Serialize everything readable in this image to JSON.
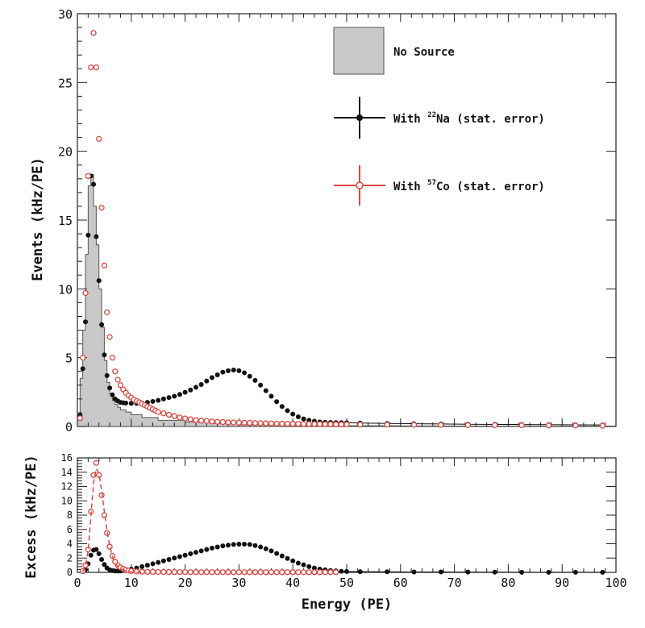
{
  "colors": {
    "na22": "#111111",
    "co57": "#e0463f",
    "no_source_fill": "#c8c8c8",
    "no_source_line": "#555555",
    "axis": "#222222"
  },
  "legend": {
    "no_source": "No Source",
    "na22_prefix": "With ",
    "na22_sup": "22",
    "na22_suffix": "Na (stat. error)",
    "co57_prefix": "With ",
    "co57_sup": "57",
    "co57_suffix": "Co (stat. error)"
  },
  "chart_data": [
    {
      "type": "scatter",
      "ylabel": "Events (kHz/PE)",
      "xlim": [
        0,
        100
      ],
      "ylim": [
        0,
        30
      ],
      "x_ticks": [],
      "y_ticks": [
        0,
        5,
        10,
        15,
        20,
        25,
        30
      ],
      "legend_position": "top-right",
      "series": [
        {
          "name": "No Source",
          "style": "histogram",
          "x": [
            0.5,
            1,
            1.5,
            2,
            2.5,
            3,
            3.5,
            4,
            4.5,
            5,
            5.5,
            6,
            6.5,
            7,
            7.5,
            8,
            9,
            10,
            12,
            15,
            20,
            25,
            30,
            40,
            50,
            60,
            70,
            80,
            90,
            100
          ],
          "y": [
            0.6,
            3.5,
            7.0,
            12.5,
            17.5,
            18.3,
            16.0,
            13.2,
            10.0,
            7.2,
            4.8,
            3.2,
            2.4,
            1.9,
            1.6,
            1.4,
            1.2,
            1.05,
            0.85,
            0.65,
            0.45,
            0.32,
            0.22,
            0.12,
            0.07,
            0.05,
            0.04,
            0.03,
            0.02,
            0.02
          ]
        },
        {
          "name": "With 22Na (stat. error)",
          "x": [
            0.5,
            1,
            1.5,
            2,
            2.5,
            3,
            3.5,
            4,
            4.5,
            5,
            5.5,
            6,
            6.5,
            7,
            7.5,
            8,
            8.5,
            9,
            10,
            11,
            12,
            13,
            14,
            15,
            16,
            17,
            18,
            19,
            20,
            21,
            22,
            23,
            24,
            25,
            26,
            27,
            28,
            29,
            30,
            31,
            32,
            33,
            34,
            35,
            36,
            37,
            38,
            39,
            40,
            41,
            42,
            43,
            44,
            45,
            46,
            47,
            48,
            49,
            50,
            52.5,
            57.5,
            62.5,
            67.5,
            72.5,
            77.5,
            82.5,
            87.5,
            92.5,
            97.5
          ],
          "y": [
            0.8,
            4.2,
            7.6,
            13.9,
            18.2,
            17.6,
            13.8,
            10.6,
            7.4,
            5.2,
            3.7,
            2.8,
            2.3,
            2.0,
            1.85,
            1.75,
            1.72,
            1.7,
            1.68,
            1.68,
            1.7,
            1.75,
            1.82,
            1.9,
            2.0,
            2.1,
            2.2,
            2.33,
            2.48,
            2.65,
            2.85,
            3.05,
            3.3,
            3.55,
            3.75,
            3.95,
            4.05,
            4.1,
            4.05,
            3.9,
            3.65,
            3.35,
            3.0,
            2.6,
            2.2,
            1.8,
            1.45,
            1.15,
            0.9,
            0.7,
            0.55,
            0.45,
            0.38,
            0.33,
            0.3,
            0.29,
            0.28,
            0.28,
            0.27,
            0.25,
            0.22,
            0.2,
            0.18,
            0.16,
            0.15,
            0.14,
            0.13,
            0.12,
            0.11
          ]
        },
        {
          "name": "With 57Co (stat. error)",
          "x": [
            0.5,
            1,
            1.5,
            2,
            2.5,
            3,
            3.5,
            4,
            4.5,
            5,
            5.5,
            6,
            6.5,
            7,
            7.5,
            8,
            8.5,
            9,
            9.5,
            10,
            10.5,
            11,
            11.5,
            12,
            12.5,
            13,
            13.5,
            14,
            14.5,
            15,
            16,
            17,
            18,
            19,
            20,
            21,
            22,
            23,
            24,
            25,
            26,
            27,
            28,
            29,
            30,
            31,
            32,
            33,
            34,
            35,
            36,
            37,
            38,
            39,
            40,
            41,
            42,
            43,
            44,
            45,
            46,
            47,
            48,
            49,
            50,
            52.5,
            57.5,
            62.5,
            67.5,
            72.5,
            77.5,
            82.5,
            87.5,
            92.5,
            97.5
          ],
          "y": [
            0.6,
            5.0,
            9.7,
            18.2,
            26.1,
            28.6,
            26.1,
            20.9,
            15.9,
            11.7,
            8.3,
            6.5,
            5.0,
            4.0,
            3.4,
            3.0,
            2.7,
            2.45,
            2.25,
            2.1,
            1.95,
            1.85,
            1.75,
            1.65,
            1.55,
            1.45,
            1.35,
            1.25,
            1.15,
            1.05,
            0.95,
            0.85,
            0.75,
            0.65,
            0.58,
            0.52,
            0.46,
            0.42,
            0.39,
            0.36,
            0.34,
            0.32,
            0.3,
            0.29,
            0.28,
            0.27,
            0.26,
            0.25,
            0.24,
            0.23,
            0.22,
            0.21,
            0.2,
            0.2,
            0.19,
            0.19,
            0.18,
            0.18,
            0.17,
            0.17,
            0.16,
            0.16,
            0.15,
            0.15,
            0.15,
            0.14,
            0.13,
            0.12,
            0.11,
            0.1,
            0.09,
            0.08,
            0.07,
            0.06,
            0.05
          ]
        }
      ]
    },
    {
      "type": "scatter",
      "xlabel": "Energy (PE)",
      "ylabel": "Excess (kHz/PE)",
      "xlim": [
        0,
        100
      ],
      "ylim": [
        0,
        16
      ],
      "x_ticks": [
        0,
        10,
        20,
        30,
        40,
        50,
        60,
        70,
        80,
        90,
        100
      ],
      "y_ticks": [
        0,
        2,
        4,
        6,
        8,
        10,
        12,
        14,
        16
      ],
      "series": [
        {
          "name": "With 22Na (stat. error)",
          "x": [
            1,
            1.5,
            2,
            2.5,
            3,
            3.5,
            4,
            4.5,
            5,
            5.5,
            6,
            6.5,
            7,
            7.5,
            8,
            9,
            10,
            11,
            12,
            13,
            14,
            15,
            16,
            17,
            18,
            19,
            20,
            21,
            22,
            23,
            24,
            25,
            26,
            27,
            28,
            29,
            30,
            31,
            32,
            33,
            34,
            35,
            36,
            37,
            38,
            39,
            40,
            41,
            42,
            43,
            44,
            45,
            46,
            47,
            48,
            49,
            50,
            52.5,
            57.5,
            62.5,
            67.5,
            72.5,
            77.5,
            82.5,
            87.5,
            92.5,
            97.5
          ],
          "y": [
            0.1,
            0.4,
            1.2,
            2.4,
            3.1,
            3.2,
            2.6,
            1.8,
            1.1,
            0.6,
            0.35,
            0.25,
            0.2,
            0.18,
            0.2,
            0.3,
            0.45,
            0.6,
            0.8,
            1.0,
            1.2,
            1.4,
            1.6,
            1.8,
            2.0,
            2.2,
            2.4,
            2.6,
            2.8,
            3.0,
            3.2,
            3.4,
            3.55,
            3.7,
            3.8,
            3.9,
            3.95,
            3.95,
            3.9,
            3.75,
            3.55,
            3.3,
            3.0,
            2.65,
            2.3,
            1.95,
            1.6,
            1.3,
            1.05,
            0.8,
            0.6,
            0.45,
            0.35,
            0.25,
            0.2,
            0.15,
            0.12,
            0.1,
            0.08,
            0.06,
            0.05,
            0.04,
            0.03,
            0.02,
            0.02,
            0.01,
            0.01
          ]
        },
        {
          "name": "With 57Co (stat. error)",
          "x": [
            1,
            1.5,
            2,
            2.5,
            3,
            3.5,
            4,
            4.5,
            5,
            5.5,
            6,
            6.5,
            7,
            7.5,
            8,
            8.5,
            9,
            9.5,
            10,
            11,
            12,
            13,
            14,
            15,
            16,
            17,
            18,
            19,
            20,
            21,
            22,
            23,
            24,
            25,
            26,
            27,
            28,
            29,
            30,
            31,
            32,
            33,
            34,
            35,
            36,
            37,
            38,
            39,
            40,
            41,
            42,
            43,
            44,
            45,
            46,
            47,
            48
          ],
          "y": [
            0.2,
            1.0,
            3.2,
            8.5,
            13.6,
            15.3,
            13.6,
            10.8,
            8.0,
            5.5,
            3.6,
            2.3,
            1.5,
            1.0,
            0.7,
            0.5,
            0.35,
            0.25,
            0.18,
            0.12,
            0.1,
            0.08,
            0.07,
            0.06,
            0.05,
            0.05,
            0.04,
            0.04,
            0.04,
            0.03,
            0.03,
            0.03,
            0.03,
            0.03,
            0.03,
            0.03,
            0.02,
            0.02,
            0.02,
            0.02,
            0.02,
            0.02,
            0.02,
            0.02,
            0.02,
            0.02,
            0.02,
            0.02,
            0.02,
            0.02,
            0.02,
            0.02,
            0.02,
            0.02,
            0.02,
            0.02,
            0.02
          ]
        },
        {
          "name": "Co57 fit",
          "style": "dashed-line",
          "x": [
            1,
            1.5,
            2,
            2.5,
            3,
            3.5,
            4,
            4.5,
            5,
            5.5,
            6,
            6.5,
            7,
            7.5,
            8,
            9,
            10,
            11,
            12
          ],
          "y": [
            0.1,
            0.8,
            3.0,
            7.8,
            12.5,
            14.5,
            13.8,
            11.5,
            8.5,
            5.8,
            3.7,
            2.2,
            1.3,
            0.8,
            0.5,
            0.2,
            0.08,
            0.03,
            0.01
          ]
        }
      ]
    }
  ]
}
